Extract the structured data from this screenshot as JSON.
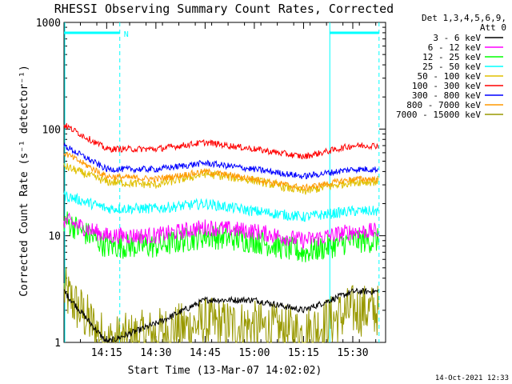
{
  "chart_data": {
    "type": "line",
    "title": "RHESSI Observing Summary Count Rates, Corrected",
    "xlabel": "Start Time (13-Mar-07 14:02:02)",
    "ylabel": "Corrected Count Rate (s⁻¹ detector⁻¹)",
    "y_scale": "log",
    "ylim": [
      1,
      1000
    ],
    "y_ticks": [
      {
        "value": 1,
        "label": "1"
      },
      {
        "value": 10,
        "label": "10"
      },
      {
        "value": 100,
        "label": "100"
      },
      {
        "value": 1000,
        "label": "1000"
      }
    ],
    "x_range": [
      "14:02",
      "15:40"
    ],
    "x_ticks": [
      "14:15",
      "14:30",
      "14:45",
      "15:00",
      "15:15",
      "15:30"
    ],
    "legend": {
      "header": [
        "Det 1,3,4,5,6,9,",
        "Att 0"
      ],
      "position": "right"
    },
    "series": [
      {
        "name": "3 - 6 keV",
        "color": "#000000",
        "values_at_ticks": [
          3,
          1,
          1.5,
          2.5,
          2.5,
          2,
          3
        ]
      },
      {
        "name": "6 - 12 keV",
        "color": "#ff00ff",
        "values_at_ticks": [
          14,
          10,
          10,
          12,
          11,
          9,
          11
        ]
      },
      {
        "name": "12 - 25 keV",
        "color": "#00ff00",
        "values_at_ticks": [
          14,
          8,
          8,
          10,
          9,
          7,
          9
        ]
      },
      {
        "name": "25 - 50 keV",
        "color": "#00ffff",
        "values_at_ticks": [
          24,
          18,
          18,
          20,
          17,
          15,
          17
        ]
      },
      {
        "name": "50 - 100 keV",
        "color": "#e0c000",
        "values_at_ticks": [
          45,
          32,
          30,
          38,
          33,
          26,
          32
        ]
      },
      {
        "name": "100 - 300 keV",
        "color": "#ff0000",
        "values_at_ticks": [
          110,
          65,
          65,
          75,
          65,
          55,
          70
        ]
      },
      {
        "name": "300 - 800 keV",
        "color": "#0000ff",
        "values_at_ticks": [
          70,
          42,
          42,
          48,
          42,
          36,
          42
        ]
      },
      {
        "name": "800 - 7000 keV",
        "color": "#ff9900",
        "values_at_ticks": [
          60,
          36,
          34,
          40,
          34,
          28,
          34
        ]
      },
      {
        "name": "7000 - 15000 keV",
        "color": "#999900",
        "values_at_ticks": [
          3,
          1,
          1.2,
          1.5,
          1.4,
          1.2,
          2
        ]
      }
    ],
    "bands": [
      {
        "label": "N",
        "start": "14:02",
        "end": "14:19",
        "color": "#00ffff"
      },
      {
        "label": "",
        "start": "15:23",
        "end": "15:38",
        "color": "#00ffff"
      }
    ],
    "footer_date": "14-Oct-2021 12:33"
  }
}
